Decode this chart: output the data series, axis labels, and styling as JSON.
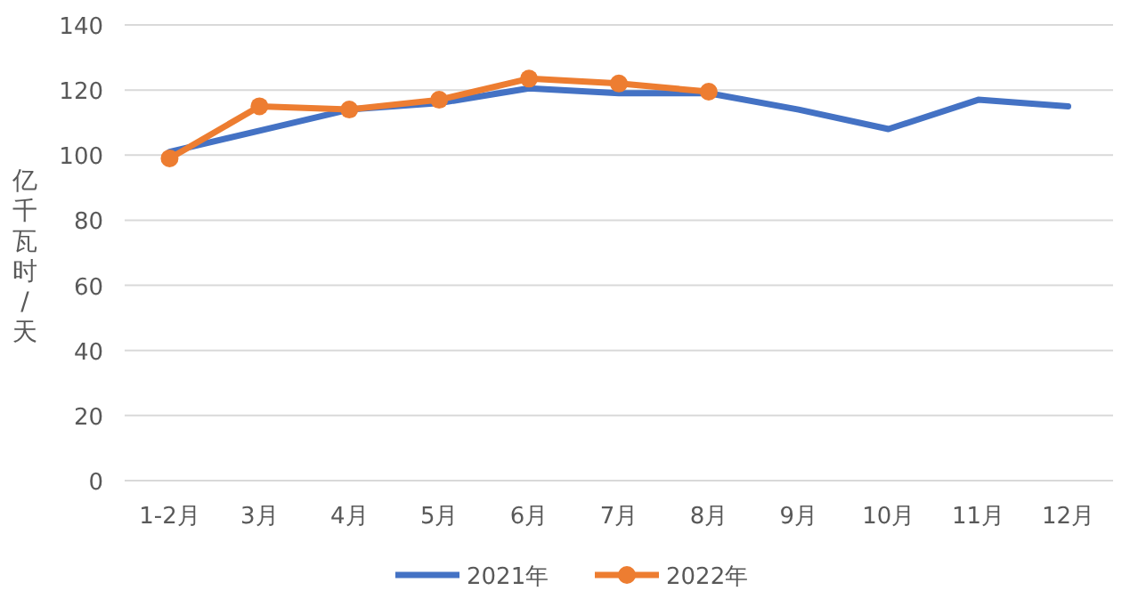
{
  "chart_data": {
    "type": "line",
    "ylabel": "亿千瓦时/天",
    "categories": [
      "1-2月",
      "3月",
      "4月",
      "5月",
      "6月",
      "7月",
      "8月",
      "9月",
      "10月",
      "11月",
      "12月"
    ],
    "series": [
      {
        "name": "2021年",
        "color": "#4472c4",
        "marker": "none",
        "values": [
          101,
          107.5,
          114,
          116,
          120.5,
          119,
          119,
          114,
          108,
          117,
          115
        ]
      },
      {
        "name": "2022年",
        "color": "#ed7d31",
        "marker": "circle",
        "values": [
          99,
          115,
          114,
          117,
          123.5,
          122,
          119.5,
          null,
          null,
          null,
          null
        ]
      }
    ],
    "ylim": [
      0,
      140
    ],
    "yticks": [
      0,
      20,
      40,
      60,
      80,
      100,
      120,
      140
    ],
    "grid": "y",
    "legend": "bottom"
  }
}
